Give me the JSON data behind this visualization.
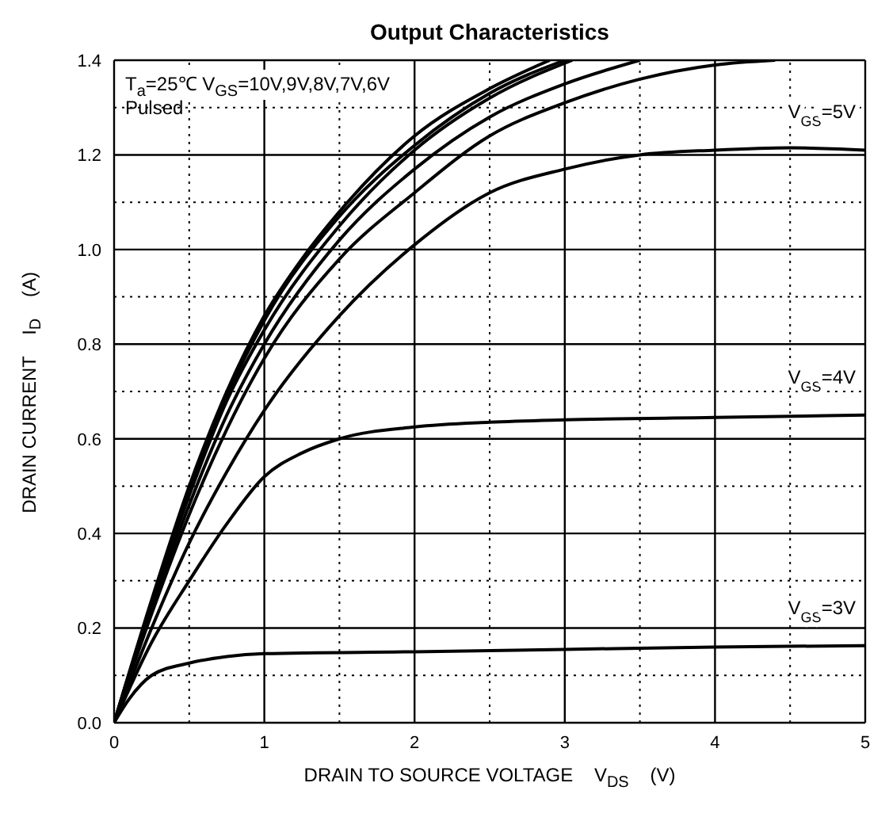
{
  "chart_data": {
    "type": "line",
    "title": "Output Characteristics",
    "xlabel": "DRAIN TO SOURCE VOLTAGE    V$_{DS}$    (V)",
    "ylabel": "DRAIN CURRENT    I$_{D}$    (A)",
    "xlim": [
      0,
      5
    ],
    "ylim": [
      0,
      1.4
    ],
    "xticks": [
      0,
      {
        "value": 0.5,
        "label": null
      },
      1,
      {
        "value": 1.5,
        "label": null
      },
      2,
      {
        "value": 2.5,
        "label": null
      },
      3,
      {
        "value": 3.5,
        "label": null
      },
      4,
      {
        "value": 4.5,
        "label": null
      },
      5
    ],
    "yticks": [
      {
        "value": 0,
        "label": "0.0"
      },
      {
        "value": 0.1,
        "label": null
      },
      0.2,
      {
        "value": 0.3,
        "label": null
      },
      0.4,
      {
        "value": 0.5,
        "label": null
      },
      0.6,
      {
        "value": 0.7,
        "label": null
      },
      0.8,
      {
        "value": 0.9,
        "label": null
      },
      {
        "value": 1,
        "label": "1.0"
      },
      {
        "value": 1.1,
        "label": null
      },
      1.2,
      {
        "value": 1.3,
        "label": null
      },
      1.4
    ],
    "grid": true,
    "line_style": "solid",
    "series": [
      {
        "color": "#000000",
        "x": [
          0,
          0.25,
          0.5,
          0.75,
          1,
          1.25,
          1.5,
          2,
          2.5,
          2.9
        ],
        "values": [
          0,
          0.26,
          0.5,
          0.7,
          0.86,
          0.98,
          1.08,
          1.24,
          1.34,
          1.4
        ]
      },
      {
        "color": "#000000",
        "x": [
          0,
          0.25,
          0.5,
          0.75,
          1,
          1.5,
          2,
          2.5,
          3
        ],
        "values": [
          0,
          0.255,
          0.49,
          0.69,
          0.85,
          1.07,
          1.22,
          1.33,
          1.4
        ]
      },
      {
        "color": "#000000",
        "x": [
          0,
          0.25,
          0.5,
          0.75,
          1,
          1.5,
          2,
          2.5,
          3.05
        ],
        "values": [
          0,
          0.25,
          0.48,
          0.68,
          0.83,
          1.05,
          1.21,
          1.32,
          1.4
        ]
      },
      {
        "color": "#000000",
        "x": [
          0,
          0.25,
          0.5,
          0.75,
          1,
          1.5,
          2,
          2.5,
          3,
          3.5
        ],
        "values": [
          0,
          0.24,
          0.46,
          0.65,
          0.8,
          1.02,
          1.17,
          1.28,
          1.35,
          1.4
        ]
      },
      {
        "color": "#000000",
        "x": [
          0,
          0.25,
          0.5,
          0.75,
          1,
          1.5,
          2,
          2.5,
          3,
          3.5,
          4,
          4.4
        ],
        "values": [
          0,
          0.23,
          0.44,
          0.62,
          0.77,
          0.98,
          1.12,
          1.24,
          1.31,
          1.36,
          1.39,
          1.4
        ]
      },
      {
        "name": "V$_{GS}$=5V",
        "color": "#000000",
        "x": [
          0,
          0.25,
          0.5,
          0.75,
          1,
          1.5,
          2,
          2.5,
          3,
          3.5,
          4,
          4.5,
          5
        ],
        "values": [
          0,
          0.2,
          0.38,
          0.53,
          0.66,
          0.86,
          1.01,
          1.12,
          1.17,
          1.2,
          1.21,
          1.215,
          1.21
        ]
      },
      {
        "name": "V$_{GS}$=4V",
        "color": "#000000",
        "x": [
          0,
          0.25,
          0.5,
          0.75,
          1,
          1.25,
          1.5,
          2,
          2.5,
          3,
          4,
          5
        ],
        "values": [
          0,
          0.17,
          0.3,
          0.42,
          0.52,
          0.57,
          0.6,
          0.625,
          0.635,
          0.64,
          0.645,
          0.65
        ]
      },
      {
        "name": "V$_{GS}$=3V",
        "color": "#000000",
        "x": [
          0,
          0.1,
          0.25,
          0.5,
          0.75,
          1,
          2,
          3,
          4,
          5
        ],
        "values": [
          0,
          0.05,
          0.1,
          0.126,
          0.14,
          0.146,
          0.15,
          0.155,
          0.16,
          0.163
        ]
      }
    ],
    "annotations": [
      "T$_{a}$=25℃ V$_{GS}$=10V,9V,8V,7V,6V",
      "Pulsed"
    ]
  }
}
